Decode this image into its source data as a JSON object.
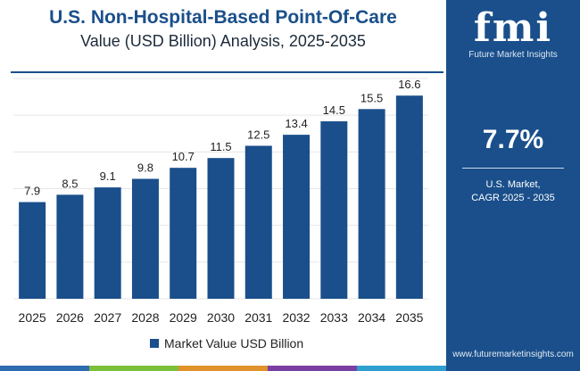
{
  "header": {
    "title_line1": "U.S. Non-Hospital-Based Point-Of-Care",
    "title_line2": "Value (USD Billion) Analysis, 2025-2035"
  },
  "legend": {
    "label": "Market Value USD Billion"
  },
  "panel": {
    "logo_letters": "fmi",
    "logo_tagline": "Future Market Insights",
    "cagr_value": "7.7%",
    "cagr_label_line1": "U.S. Market,",
    "cagr_label_line2": "CAGR 2025 - 2035",
    "website": "www.futuremarketinsights.com"
  },
  "colors": {
    "brand_blue": "#1a4f8b",
    "bar": "#1a4f8b",
    "bottom_bar": [
      "#2f6db0",
      "#7bbf3a",
      "#e0922b",
      "#7b3fa1",
      "#2f9fd0"
    ]
  },
  "chart_data": {
    "type": "bar",
    "categories": [
      "2025",
      "2026",
      "2027",
      "2028",
      "2029",
      "2030",
      "2031",
      "2032",
      "2033",
      "2034",
      "2035"
    ],
    "series": [
      {
        "name": "Market Value USD Billion",
        "values": [
          7.9,
          8.5,
          9.1,
          9.8,
          10.7,
          11.5,
          12.5,
          13.4,
          14.5,
          15.5,
          16.6
        ]
      }
    ],
    "value_labels": [
      "7.9",
      "8.5",
      "9.1",
      "9.8",
      "10.7",
      "11.5",
      "12.5",
      "13.4",
      "14.5",
      "15.5",
      "16.6"
    ],
    "ylim": [
      0,
      18
    ],
    "grid": true
  }
}
